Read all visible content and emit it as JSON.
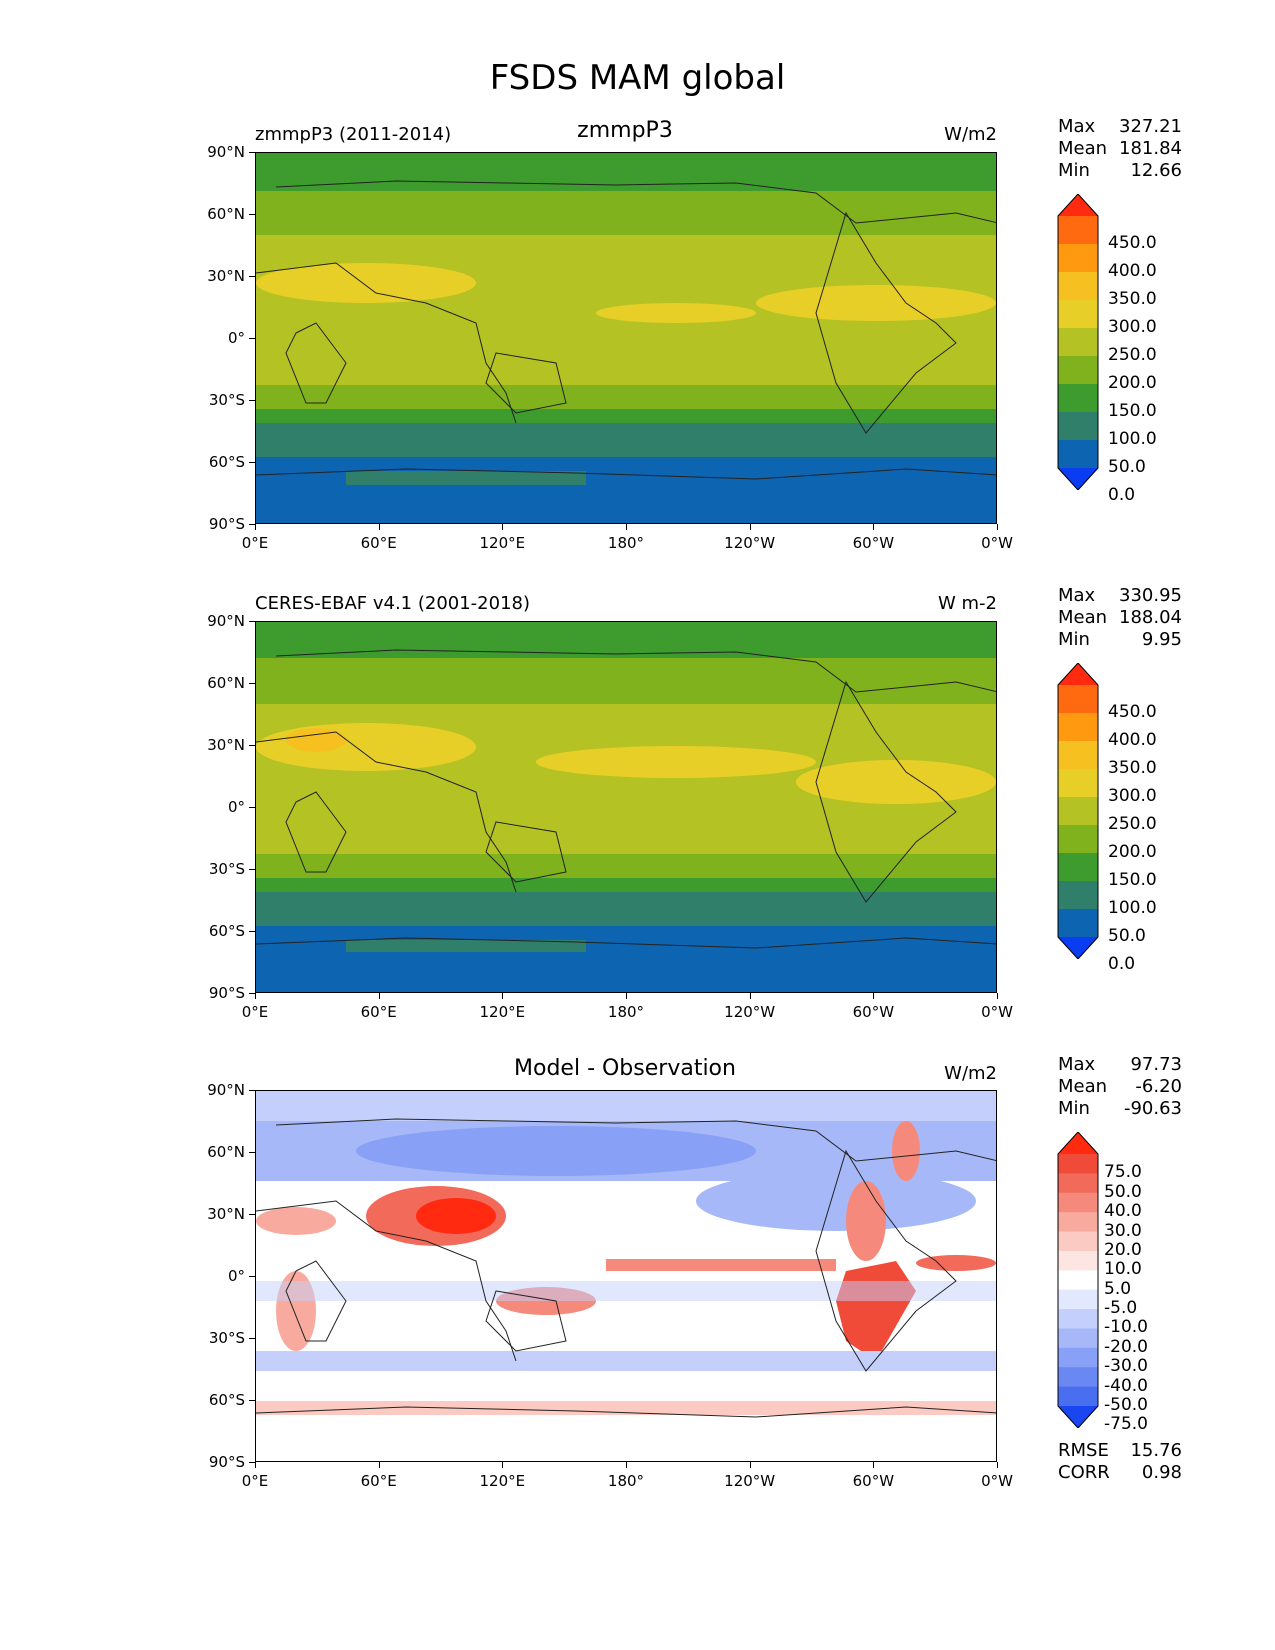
{
  "title": "FSDS MAM global",
  "panels": [
    {
      "id": "test",
      "left_label": "zmmpP3 (2011-2014)",
      "center_label": "zmmpP3",
      "units": "W/m2",
      "stats": [
        {
          "k": "Max",
          "v": "327.21"
        },
        {
          "k": "Mean",
          "v": "181.84"
        },
        {
          "k": "Min",
          "v": "12.66"
        }
      ],
      "colorbar": {
        "labels": [
          "450.0",
          "400.0",
          "350.0",
          "300.0",
          "250.0",
          "200.0",
          "150.0",
          "100.0",
          "50.0",
          "0.0"
        ],
        "colors": [
          "#ff2a10",
          "#ff6a10",
          "#ff9a10",
          "#f5c020",
          "#e8cf28",
          "#b4c224",
          "#7fb21c",
          "#3e9c2e",
          "#2f7f6a",
          "#0d64b0",
          "#0a3cf2"
        ]
      }
    },
    {
      "id": "ref",
      "left_label": "CERES-EBAF v4.1 (2001-2018)",
      "center_label": "",
      "units": "W m-2",
      "stats": [
        {
          "k": "Max",
          "v": "330.95"
        },
        {
          "k": "Mean",
          "v": "188.04"
        },
        {
          "k": "Min",
          "v": "9.95"
        }
      ],
      "colorbar": {
        "labels": [
          "450.0",
          "400.0",
          "350.0",
          "300.0",
          "250.0",
          "200.0",
          "150.0",
          "100.0",
          "50.0",
          "0.0"
        ],
        "colors": [
          "#ff2a10",
          "#ff6a10",
          "#ff9a10",
          "#f5c020",
          "#e8cf28",
          "#b4c224",
          "#7fb21c",
          "#3e9c2e",
          "#2f7f6a",
          "#0d64b0",
          "#0a3cf2"
        ]
      }
    },
    {
      "id": "diff",
      "left_label": "",
      "center_label": "Model - Observation",
      "units": "W/m2",
      "stats": [
        {
          "k": "Max",
          "v": "97.73"
        },
        {
          "k": "Mean",
          "v": "-6.20"
        },
        {
          "k": "Min",
          "v": "-90.63"
        }
      ],
      "colorbar": {
        "labels": [
          "75.0",
          "50.0",
          "40.0",
          "30.0",
          "20.0",
          "10.0",
          "5.0",
          "-5.0",
          "-10.0",
          "-20.0",
          "-30.0",
          "-40.0",
          "-50.0",
          "-75.0"
        ],
        "colors": [
          "#ff2a10",
          "#f04a38",
          "#f26a5a",
          "#f58a7c",
          "#f8aa9e",
          "#fbcac2",
          "#fde6e2",
          "#ffffff",
          "#e2e8fd",
          "#c4d0fb",
          "#a6b8f8",
          "#88a0f5",
          "#6a88f2",
          "#4a6ef0",
          "#1a46f2"
        ]
      },
      "footer": [
        {
          "k": "RMSE",
          "v": "15.76"
        },
        {
          "k": "CORR",
          "v": "0.98"
        }
      ]
    }
  ],
  "axes": {
    "lat_ticks": [
      "90°N",
      "60°N",
      "30°N",
      "0°",
      "30°S",
      "60°S",
      "90°S"
    ],
    "lon_ticks": [
      "0°E",
      "60°E",
      "120°E",
      "180°",
      "120°W",
      "60°W",
      "0°W"
    ]
  }
}
